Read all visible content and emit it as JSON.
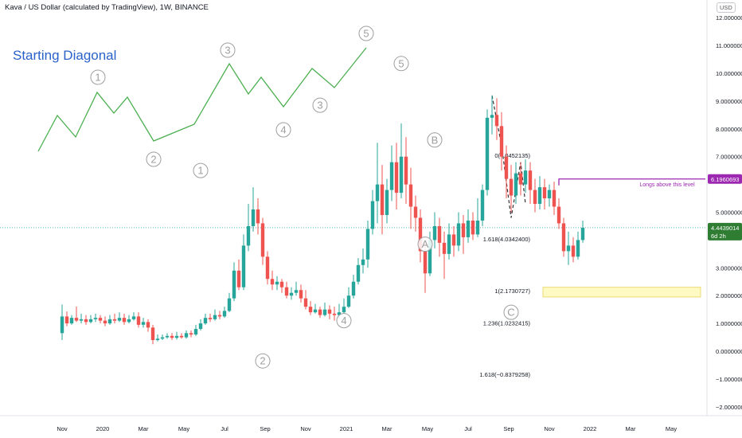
{
  "header": {
    "title": "Kava / US Dollar (calculated by TradingView), 1W, BINANCE",
    "currency_label": "USD"
  },
  "diagram": {
    "title": "Starting Diagonal",
    "wave_labels": [
      "1",
      "2",
      "3",
      "4",
      "5"
    ]
  },
  "colors": {
    "up": "#26a69a",
    "down": "#ef5350",
    "diagonal_line": "#4caf50",
    "wave_label": "#9e9e9e",
    "resistance": "#9c27b0",
    "target_zone": "#fff9c4",
    "current_price": "#2e7d32"
  },
  "annotations": {
    "long_note": "Longs above this level",
    "resistance_value": "6.1960693",
    "current_price": "4.4439014",
    "countdown": "6d 2h"
  },
  "chart_data": {
    "type": "candlestick",
    "title": "Kava / US Dollar (calculated by TradingView), 1W, BINANCE",
    "ylim": [
      -2.2,
      12.7
    ],
    "y_ticks": [
      {
        "v": 12,
        "label": "12.0000000"
      },
      {
        "v": 11,
        "label": "11.0000000"
      },
      {
        "v": 10,
        "label": "10.0000000"
      },
      {
        "v": 9,
        "label": "9.0000000"
      },
      {
        "v": 8,
        "label": "8.0000000"
      },
      {
        "v": 7,
        "label": "7.0000000"
      },
      {
        "v": 5,
        "label": "5.0000000"
      },
      {
        "v": 3,
        "label": "3.0000000"
      },
      {
        "v": 2,
        "label": "2.0000000"
      },
      {
        "v": 1,
        "label": "1.0000000"
      },
      {
        "v": 0,
        "label": "0.0000000"
      },
      {
        "v": -1,
        "label": "−1.0000000"
      },
      {
        "v": -2,
        "label": "−2.0000000"
      }
    ],
    "x_ticks": [
      {
        "i": 0,
        "label": "Nov"
      },
      {
        "i": 8.5,
        "label": "2020"
      },
      {
        "i": 17,
        "label": "Mar"
      },
      {
        "i": 25.5,
        "label": "May"
      },
      {
        "i": 34,
        "label": "Jul"
      },
      {
        "i": 42.5,
        "label": "Sep"
      },
      {
        "i": 51,
        "label": "Nov"
      },
      {
        "i": 59.5,
        "label": "2021"
      },
      {
        "i": 68,
        "label": "Mar"
      },
      {
        "i": 76.5,
        "label": "May"
      },
      {
        "i": 85,
        "label": "Jul"
      },
      {
        "i": 93.5,
        "label": "Sep"
      },
      {
        "i": 102,
        "label": "Nov"
      },
      {
        "i": 110.5,
        "label": "2022"
      },
      {
        "i": 119,
        "label": "Mar"
      },
      {
        "i": 127.5,
        "label": "May"
      }
    ],
    "candles": [
      [
        0.65,
        1.25,
        1.68,
        0.4
      ],
      [
        1.25,
        1.0,
        1.43,
        0.9
      ],
      [
        1.0,
        1.2,
        1.3,
        0.95
      ],
      [
        1.2,
        1.1,
        1.6,
        1.05
      ],
      [
        1.1,
        1.15,
        1.35,
        1.0
      ],
      [
        1.15,
        1.05,
        1.3,
        0.95
      ],
      [
        1.05,
        1.15,
        1.3,
        1.0
      ],
      [
        1.15,
        1.2,
        1.35,
        1.05
      ],
      [
        1.2,
        1.1,
        1.3,
        1.0
      ],
      [
        1.1,
        1.0,
        1.25,
        0.9
      ],
      [
        1.0,
        1.15,
        1.3,
        0.95
      ],
      [
        1.15,
        1.1,
        1.35,
        1.0
      ],
      [
        1.1,
        1.2,
        1.4,
        1.05
      ],
      [
        1.2,
        1.05,
        1.35,
        0.95
      ],
      [
        1.05,
        1.15,
        1.3,
        1.0
      ],
      [
        1.15,
        1.25,
        1.4,
        1.1
      ],
      [
        1.25,
        0.95,
        1.4,
        0.85
      ],
      [
        0.95,
        1.05,
        1.2,
        0.85
      ],
      [
        1.05,
        0.85,
        1.15,
        0.7
      ],
      [
        0.85,
        0.4,
        0.95,
        0.25
      ],
      [
        0.4,
        0.45,
        0.6,
        0.35
      ],
      [
        0.45,
        0.5,
        0.6,
        0.4
      ],
      [
        0.5,
        0.55,
        0.65,
        0.45
      ],
      [
        0.55,
        0.48,
        0.65,
        0.4
      ],
      [
        0.48,
        0.55,
        0.7,
        0.42
      ],
      [
        0.55,
        0.5,
        0.65,
        0.45
      ],
      [
        0.5,
        0.65,
        0.75,
        0.45
      ],
      [
        0.65,
        0.6,
        0.75,
        0.5
      ],
      [
        0.6,
        0.8,
        0.95,
        0.55
      ],
      [
        0.8,
        1.0,
        1.15,
        0.75
      ],
      [
        1.0,
        1.2,
        1.35,
        0.95
      ],
      [
        1.2,
        1.15,
        1.35,
        1.05
      ],
      [
        1.15,
        1.3,
        1.5,
        1.1
      ],
      [
        1.3,
        1.25,
        1.45,
        1.15
      ],
      [
        1.25,
        1.45,
        1.6,
        1.2
      ],
      [
        1.45,
        1.9,
        2.1,
        1.4
      ],
      [
        1.9,
        2.9,
        3.2,
        1.8
      ],
      [
        2.9,
        2.3,
        3.3,
        2.2
      ],
      [
        2.3,
        3.8,
        4.2,
        2.2
      ],
      [
        3.8,
        4.5,
        5.3,
        3.6
      ],
      [
        4.5,
        5.1,
        5.9,
        4.3
      ],
      [
        5.1,
        4.6,
        5.5,
        4.2
      ],
      [
        4.6,
        3.4,
        4.8,
        3.1
      ],
      [
        3.4,
        2.6,
        3.6,
        2.4
      ],
      [
        2.6,
        2.4,
        2.9,
        2.2
      ],
      [
        2.4,
        2.5,
        2.7,
        2.2
      ],
      [
        2.5,
        2.3,
        2.6,
        2.1
      ],
      [
        2.3,
        2.0,
        2.5,
        1.9
      ],
      [
        2.0,
        2.1,
        2.3,
        1.85
      ],
      [
        2.1,
        2.2,
        2.5,
        2.0
      ],
      [
        2.2,
        1.9,
        2.4,
        1.75
      ],
      [
        1.9,
        1.6,
        2.2,
        1.5
      ],
      [
        1.6,
        1.4,
        1.8,
        1.3
      ],
      [
        1.4,
        1.5,
        1.7,
        1.35
      ],
      [
        1.5,
        1.3,
        1.6,
        1.2
      ],
      [
        1.3,
        1.5,
        1.75,
        1.25
      ],
      [
        1.5,
        1.35,
        1.65,
        1.15
      ],
      [
        1.35,
        1.3,
        1.6,
        1.1
      ],
      [
        1.3,
        1.4,
        1.7,
        1.15
      ],
      [
        1.4,
        1.6,
        1.9,
        1.35
      ],
      [
        1.6,
        2.0,
        2.3,
        1.55
      ],
      [
        2.0,
        2.5,
        2.75,
        1.9
      ],
      [
        2.5,
        3.1,
        3.35,
        2.4
      ],
      [
        3.1,
        3.3,
        3.7,
        2.8
      ],
      [
        3.3,
        4.4,
        4.7,
        3.0
      ],
      [
        4.4,
        5.4,
        5.8,
        4.2
      ],
      [
        5.4,
        6.0,
        7.5,
        4.6
      ],
      [
        6.0,
        4.9,
        6.7,
        4.2
      ],
      [
        4.9,
        5.8,
        6.2,
        4.6
      ],
      [
        5.8,
        6.8,
        7.4,
        5.4
      ],
      [
        6.8,
        5.7,
        7.5,
        5.1
      ],
      [
        5.7,
        7.0,
        8.2,
        5.5
      ],
      [
        7.0,
        6.0,
        7.7,
        5.3
      ],
      [
        6.0,
        5.2,
        6.6,
        4.4
      ],
      [
        5.2,
        4.8,
        5.6,
        4.3
      ],
      [
        4.8,
        3.6,
        5.1,
        3.2
      ],
      [
        3.6,
        2.8,
        3.9,
        2.1
      ],
      [
        2.8,
        4.0,
        4.3,
        2.7
      ],
      [
        4.0,
        4.5,
        5.0,
        3.7
      ],
      [
        4.5,
        3.9,
        4.8,
        3.4
      ],
      [
        3.9,
        3.5,
        4.3,
        2.6
      ],
      [
        3.5,
        4.2,
        4.6,
        3.3
      ],
      [
        4.2,
        3.8,
        4.5,
        3.4
      ],
      [
        3.8,
        4.6,
        5.0,
        3.6
      ],
      [
        4.6,
        4.1,
        4.9,
        3.5
      ],
      [
        4.1,
        4.7,
        5.1,
        3.9
      ],
      [
        4.7,
        4.2,
        5.0,
        4.0
      ],
      [
        4.2,
        4.7,
        5.5,
        4.1
      ],
      [
        4.7,
        5.8,
        6.0,
        4.5
      ],
      [
        5.8,
        8.4,
        8.7,
        5.6
      ],
      [
        8.4,
        8.5,
        9.2,
        7.8
      ],
      [
        8.5,
        8.1,
        9.1,
        7.6
      ],
      [
        8.1,
        7.0,
        8.6,
        6.5
      ],
      [
        7.0,
        6.2,
        7.4,
        5.5
      ],
      [
        6.2,
        5.6,
        6.7,
        5.0
      ],
      [
        5.6,
        6.4,
        6.8,
        5.3
      ],
      [
        6.4,
        6.0,
        6.8,
        5.6
      ],
      [
        6.0,
        6.5,
        6.9,
        5.7
      ],
      [
        6.5,
        5.8,
        6.8,
        5.3
      ],
      [
        5.8,
        5.3,
        6.2,
        5.0
      ],
      [
        5.3,
        5.9,
        6.3,
        5.1
      ],
      [
        5.9,
        5.5,
        6.2,
        5.1
      ],
      [
        5.5,
        5.8,
        6.0,
        5.2
      ],
      [
        5.8,
        5.2,
        6.1,
        4.9
      ],
      [
        5.2,
        4.6,
        5.5,
        4.4
      ],
      [
        4.6,
        3.6,
        4.8,
        3.4
      ],
      [
        3.6,
        3.8,
        4.3,
        3.1
      ],
      [
        3.8,
        3.4,
        4.1,
        3.2
      ],
      [
        3.4,
        4.0,
        4.3,
        3.3
      ],
      [
        4.0,
        4.44,
        4.7,
        3.9
      ]
    ],
    "last_price": 4.4439014,
    "resistance": 6.1960693,
    "fib_levels": [
      {
        "label": "0(7.0452135)",
        "value": 7.0452135
      },
      {
        "label": "1.618(4.0342400)",
        "value": 4.03424
      },
      {
        "label": "1(2.1730727)",
        "value": 2.1730727
      },
      {
        "label": "1.236(1.0232415)",
        "value": 1.0232415
      },
      {
        "label": "1.618(−0.8379258)",
        "value": -0.8379258
      }
    ],
    "target_zone": [
      1.95,
      2.3
    ],
    "wave_labels": [
      {
        "label": "1",
        "i": 29,
        "v": 6.5
      },
      {
        "label": "2",
        "i": 42,
        "v": -0.35
      },
      {
        "label": "3",
        "i": 54,
        "v": 8.85
      },
      {
        "label": "4",
        "i": 59,
        "v": 1.1
      },
      {
        "label": "5",
        "i": 71,
        "v": 10.35
      },
      {
        "label": "A",
        "i": 76,
        "v": 3.85
      },
      {
        "label": "B",
        "i": 78,
        "v": 7.6
      },
      {
        "label": "C",
        "i": 94,
        "v": 1.4
      }
    ]
  }
}
